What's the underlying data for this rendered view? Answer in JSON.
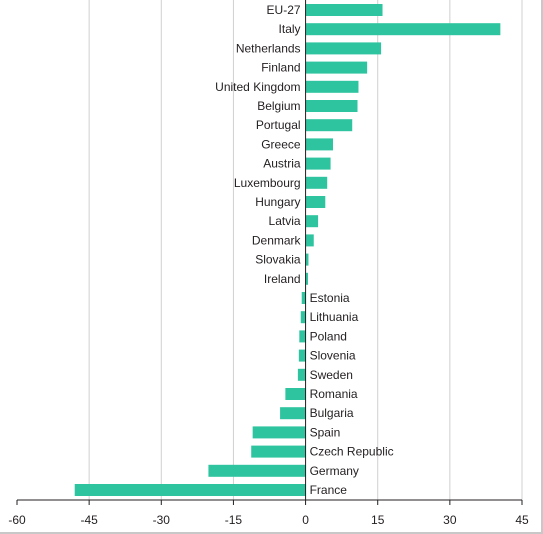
{
  "chart_data": {
    "type": "bar",
    "orientation": "horizontal",
    "title": "",
    "xlabel": "",
    "ylabel": "",
    "xlim": [
      -60,
      45
    ],
    "xticks": [
      -60,
      -45,
      -30,
      -15,
      0,
      15,
      30,
      45
    ],
    "xtick_labels": [
      "-60",
      "-45",
      "-30",
      "-15",
      "0",
      "15",
      "30",
      "45"
    ],
    "grid": "vertical",
    "bar_color": "#2ec4a0",
    "categories": [
      "EU-27",
      "Italy",
      "Netherlands",
      "Finland",
      "United Kingdom",
      "Belgium",
      "Portugal",
      "Greece",
      "Austria",
      "Luxembourg",
      "Hungary",
      "Latvia",
      "Denmark",
      "Slovakia",
      "Ireland",
      "Estonia",
      "Lithuania",
      "Poland",
      "Slovenia",
      "Sweden",
      "Romania",
      "Bulgaria",
      "Spain",
      "Czech Republic",
      "Germany",
      "France"
    ],
    "values": [
      16,
      40.5,
      15.7,
      12.8,
      11,
      10.8,
      9.7,
      5.7,
      5.2,
      4.5,
      4.1,
      2.6,
      1.7,
      0.6,
      0.5,
      -0.8,
      -1,
      -1.3,
      -1.4,
      -1.6,
      -4.2,
      -5.3,
      -11,
      -11.3,
      -20.2,
      -48
    ]
  }
}
